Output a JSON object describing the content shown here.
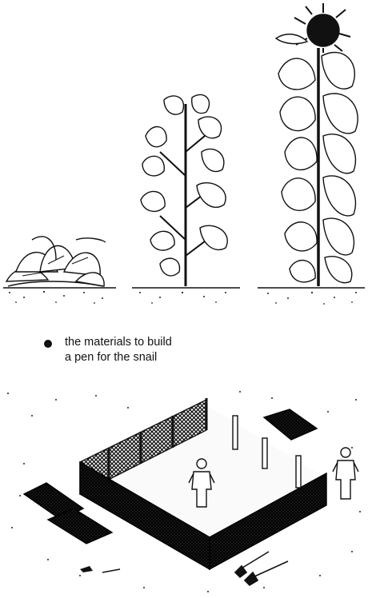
{
  "caption": {
    "line1": "the materials to build",
    "line2": "a pen for the snail"
  },
  "illustrations": {
    "plants": [
      "small leafy plant",
      "medium branching plant",
      "tall sunflower"
    ],
    "pen_scene": [
      "fence enclosure",
      "wooden stakes",
      "two human figures",
      "mesh panels",
      "shovels"
    ]
  }
}
